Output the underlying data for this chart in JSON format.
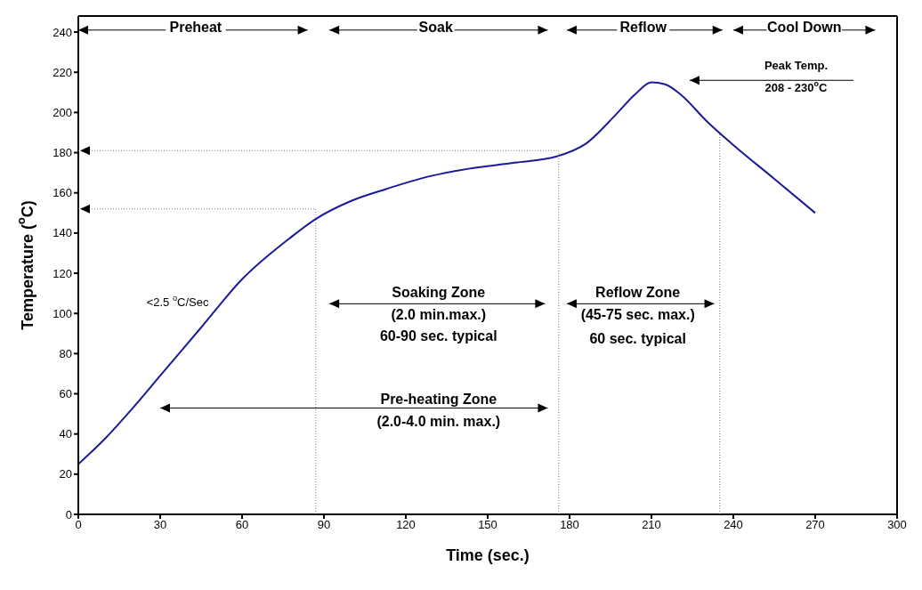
{
  "chart_data": {
    "type": "line",
    "xlabel": "Time (sec.)",
    "ylabel": "Temperature ($^{o}$C)",
    "x": [
      0,
      10,
      20,
      30,
      45,
      60,
      78,
      87,
      100,
      113,
      128,
      143,
      160,
      175,
      186,
      197,
      204,
      210,
      215,
      221,
      230,
      240,
      255,
      270
    ],
    "series": [
      {
        "color": "#1a1a9c",
        "values": [
          25,
          38,
          53,
          69,
          93,
          117,
          138,
          147,
          156,
          162,
          168,
          172,
          175,
          178,
          184.5,
          199,
          209,
          215,
          214,
          208.6,
          196,
          183.8,
          167,
          150
        ]
      }
    ],
    "xlim": [
      0,
      300
    ],
    "xticks": [
      0,
      30,
      60,
      90,
      120,
      150,
      180,
      210,
      240,
      270,
      300
    ],
    "ylim": [
      0,
      248
    ],
    "yticks": [
      0,
      20,
      40,
      60,
      80,
      100,
      120,
      140,
      160,
      180,
      200,
      220,
      240
    ],
    "marker": "none",
    "line_style": "solid",
    "ref_lines": [
      {
        "axis": "x",
        "value": 87,
        "color": "#808080",
        "line_style": "dotted"
      },
      {
        "axis": "x",
        "value": 176,
        "color": "#808080",
        "line_style": "dotted"
      },
      {
        "axis": "x",
        "value": 235,
        "color": "#808080",
        "line_style": "dotted"
      },
      {
        "axis": "y",
        "value": 152,
        "color": "#808080",
        "line_style": "dotted"
      },
      {
        "axis": "y",
        "value": 181,
        "color": "#808080",
        "line_style": "dotted"
      }
    ],
    "annotations": [
      "Preheat",
      "Soak",
      "Reflow",
      "Cool Down",
      "Peak Temp.",
      "208 - 230$^{o}$C",
      "<2.5 $^{o}$C/Sec",
      "Soaking Zone",
      "(2.0 min.max.)",
      "60-90 sec. typical",
      "Reflow Zone",
      "(45-75 sec. max.)",
      "60 sec. typical",
      "Pre-heating Zone",
      "(2.0-4.0 min. max.)"
    ]
  }
}
